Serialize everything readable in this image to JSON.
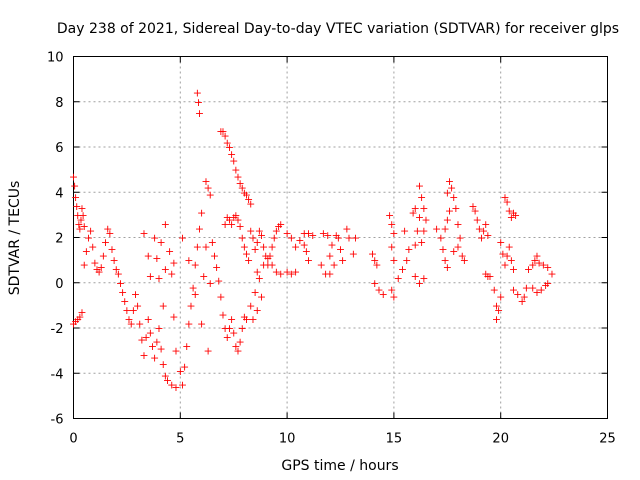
{
  "chart_data": {
    "type": "scatter",
    "title": "Day 238 of 2021, Sidereal Day-to-day VTEC variation (SDTVAR) for receiver glps",
    "xlabel": "GPS time / hours",
    "ylabel": "SDTVAR / TECUs",
    "xlim": [
      0,
      25
    ],
    "ylim": [
      -6,
      10
    ],
    "x_ticks": [
      "0",
      "5",
      "10",
      "15",
      "20",
      "25"
    ],
    "y_ticks": [
      "-6",
      "-4",
      "-2",
      "0",
      "2",
      "4",
      "6",
      "8",
      "10"
    ],
    "grid": true,
    "marker": "+",
    "marker_color": "#ff0000",
    "series": [
      {
        "name": "SDTVAR",
        "points": [
          [
            0.0,
            4.7
          ],
          [
            0.05,
            4.3
          ],
          [
            0.1,
            3.8
          ],
          [
            0.15,
            3.4
          ],
          [
            0.2,
            3.0
          ],
          [
            0.25,
            2.6
          ],
          [
            0.3,
            2.4
          ],
          [
            0.35,
            2.8
          ],
          [
            0.4,
            3.3
          ],
          [
            0.45,
            3.0
          ],
          [
            0.5,
            2.5
          ],
          [
            0.0,
            -1.8
          ],
          [
            0.1,
            -1.7
          ],
          [
            0.2,
            -1.6
          ],
          [
            0.3,
            -1.5
          ],
          [
            0.4,
            -1.3
          ],
          [
            0.5,
            0.8
          ],
          [
            0.6,
            1.4
          ],
          [
            0.7,
            2.0
          ],
          [
            0.8,
            2.3
          ],
          [
            0.9,
            1.6
          ],
          [
            1.0,
            0.9
          ],
          [
            1.1,
            0.6
          ],
          [
            1.2,
            0.5
          ],
          [
            1.3,
            0.7
          ],
          [
            1.4,
            1.2
          ],
          [
            1.5,
            1.8
          ],
          [
            1.6,
            2.4
          ],
          [
            1.7,
            2.2
          ],
          [
            1.8,
            1.5
          ],
          [
            1.9,
            1.0
          ],
          [
            2.0,
            0.6
          ],
          [
            2.1,
            0.4
          ],
          [
            2.2,
            0.0
          ],
          [
            2.3,
            -0.4
          ],
          [
            2.4,
            -0.8
          ],
          [
            2.5,
            -1.2
          ],
          [
            2.6,
            -1.6
          ],
          [
            2.7,
            -1.8
          ],
          [
            2.8,
            -1.2
          ],
          [
            2.9,
            -0.5
          ],
          [
            3.0,
            -1.0
          ],
          [
            3.1,
            -1.8
          ],
          [
            3.2,
            -2.5
          ],
          [
            3.3,
            -3.2
          ],
          [
            3.4,
            -2.4
          ],
          [
            3.5,
            -1.6
          ],
          [
            3.6,
            -2.2
          ],
          [
            3.7,
            -2.8
          ],
          [
            3.8,
            -3.3
          ],
          [
            3.9,
            -2.6
          ],
          [
            4.0,
            -2.0
          ],
          [
            4.1,
            -2.9
          ],
          [
            4.2,
            -3.6
          ],
          [
            4.3,
            -4.1
          ],
          [
            4.2,
            -1.0
          ],
          [
            4.3,
            0.6
          ],
          [
            3.3,
            2.2
          ],
          [
            3.5,
            1.2
          ],
          [
            3.6,
            0.3
          ],
          [
            3.8,
            2.0
          ],
          [
            3.9,
            1.1
          ],
          [
            4.0,
            0.2
          ],
          [
            4.1,
            1.8
          ],
          [
            4.3,
            2.6
          ],
          [
            4.5,
            1.4
          ],
          [
            4.6,
            0.4
          ],
          [
            4.7,
            -1.5
          ],
          [
            4.8,
            -3.0
          ],
          [
            4.7,
            0.9
          ],
          [
            4.4,
            -4.3
          ],
          [
            4.6,
            -4.5
          ],
          [
            4.8,
            -4.6
          ],
          [
            5.0,
            -3.9
          ],
          [
            5.1,
            -4.5
          ],
          [
            5.2,
            -3.7
          ],
          [
            5.3,
            -2.8
          ],
          [
            5.4,
            -1.8
          ],
          [
            5.5,
            -1.0
          ],
          [
            5.6,
            -0.2
          ],
          [
            5.7,
            0.8
          ],
          [
            5.8,
            1.6
          ],
          [
            5.9,
            2.4
          ],
          [
            6.0,
            3.1
          ],
          [
            5.1,
            2.0
          ],
          [
            5.4,
            1.0
          ],
          [
            5.7,
            -0.5
          ],
          [
            6.0,
            -1.8
          ],
          [
            6.3,
            -3.0
          ],
          [
            6.1,
            0.3
          ],
          [
            6.2,
            1.6
          ],
          [
            6.4,
            0.0
          ],
          [
            5.8,
            8.4
          ],
          [
            5.85,
            8.0
          ],
          [
            5.9,
            7.5
          ],
          [
            6.2,
            4.5
          ],
          [
            6.3,
            4.2
          ],
          [
            6.4,
            3.9
          ],
          [
            6.5,
            1.8
          ],
          [
            6.6,
            1.2
          ],
          [
            6.7,
            0.7
          ],
          [
            6.8,
            0.1
          ],
          [
            6.9,
            -0.6
          ],
          [
            7.0,
            -1.4
          ],
          [
            7.1,
            -2.0
          ],
          [
            7.2,
            -2.4
          ],
          [
            7.3,
            -2.0
          ],
          [
            7.4,
            -1.6
          ],
          [
            7.5,
            -2.2
          ],
          [
            7.6,
            -2.8
          ],
          [
            7.7,
            -3.0
          ],
          [
            7.8,
            -2.6
          ],
          [
            7.9,
            -2.0
          ],
          [
            8.0,
            -1.5
          ],
          [
            6.9,
            6.7
          ],
          [
            7.0,
            6.7
          ],
          [
            7.1,
            6.5
          ],
          [
            7.2,
            6.2
          ],
          [
            7.3,
            6.0
          ],
          [
            7.4,
            5.7
          ],
          [
            7.5,
            5.4
          ],
          [
            7.6,
            5.0
          ],
          [
            7.7,
            4.7
          ],
          [
            7.8,
            4.4
          ],
          [
            7.9,
            4.2
          ],
          [
            8.0,
            4.0
          ],
          [
            8.1,
            3.9
          ],
          [
            8.2,
            3.7
          ],
          [
            8.3,
            3.5
          ],
          [
            7.1,
            2.6
          ],
          [
            7.2,
            2.9
          ],
          [
            7.3,
            2.8
          ],
          [
            7.4,
            2.6
          ],
          [
            7.5,
            2.9
          ],
          [
            7.6,
            3.0
          ],
          [
            7.7,
            2.8
          ],
          [
            7.8,
            2.5
          ],
          [
            7.9,
            2.0
          ],
          [
            8.0,
            1.6
          ],
          [
            8.1,
            1.3
          ],
          [
            8.2,
            1.0
          ],
          [
            8.3,
            2.3
          ],
          [
            8.4,
            2.0
          ],
          [
            8.5,
            1.5
          ],
          [
            8.6,
            1.8
          ],
          [
            8.7,
            2.3
          ],
          [
            8.8,
            2.1
          ],
          [
            8.9,
            1.6
          ],
          [
            9.0,
            1.2
          ],
          [
            9.1,
            0.8
          ],
          [
            9.2,
            1.2
          ],
          [
            9.3,
            1.6
          ],
          [
            9.4,
            2.0
          ],
          [
            9.5,
            2.3
          ],
          [
            9.6,
            2.5
          ],
          [
            9.7,
            2.6
          ],
          [
            8.1,
            -1.6
          ],
          [
            8.3,
            -1.0
          ],
          [
            8.5,
            -0.4
          ],
          [
            8.7,
            0.2
          ],
          [
            8.9,
            0.8
          ],
          [
            9.1,
            1.1
          ],
          [
            9.3,
            0.8
          ],
          [
            9.5,
            0.5
          ],
          [
            9.7,
            0.4
          ],
          [
            8.8,
            -0.6
          ],
          [
            8.6,
            -1.2
          ],
          [
            8.4,
            -1.6
          ],
          [
            8.6,
            0.5
          ],
          [
            10.0,
            0.5
          ],
          [
            10.2,
            0.4
          ],
          [
            10.4,
            0.5
          ],
          [
            10.0,
            2.2
          ],
          [
            10.2,
            2.0
          ],
          [
            10.4,
            1.6
          ],
          [
            10.6,
            1.9
          ],
          [
            10.8,
            1.7
          ],
          [
            10.9,
            1.4
          ],
          [
            11.0,
            1.0
          ],
          [
            10.8,
            2.2
          ],
          [
            11.0,
            2.2
          ],
          [
            11.2,
            2.1
          ],
          [
            11.7,
            2.2
          ],
          [
            11.9,
            2.1
          ],
          [
            12.0,
            1.2
          ],
          [
            12.2,
            0.8
          ],
          [
            12.1,
            1.7
          ],
          [
            12.3,
            2.1
          ],
          [
            12.4,
            2.0
          ],
          [
            12.5,
            1.5
          ],
          [
            12.6,
            1.0
          ],
          [
            12.8,
            2.4
          ],
          [
            12.9,
            2.0
          ],
          [
            13.1,
            1.3
          ],
          [
            13.2,
            2.0
          ],
          [
            11.6,
            0.8
          ],
          [
            11.8,
            0.4
          ],
          [
            12.0,
            0.4
          ],
          [
            14.0,
            1.3
          ],
          [
            14.1,
            1.0
          ],
          [
            14.2,
            0.8
          ],
          [
            14.1,
            0.0
          ],
          [
            14.3,
            -0.3
          ],
          [
            14.5,
            -0.5
          ],
          [
            14.8,
            3.0
          ],
          [
            14.9,
            2.6
          ],
          [
            15.0,
            2.2
          ],
          [
            14.9,
            1.6
          ],
          [
            15.0,
            1.0
          ],
          [
            14.9,
            -0.3
          ],
          [
            15.0,
            -0.6
          ],
          [
            15.2,
            0.2
          ],
          [
            15.4,
            0.6
          ],
          [
            15.6,
            1.0
          ],
          [
            15.7,
            1.5
          ],
          [
            15.5,
            2.3
          ],
          [
            16.0,
            1.7
          ],
          [
            16.1,
            2.3
          ],
          [
            16.2,
            2.9
          ],
          [
            15.9,
            3.1
          ],
          [
            16.0,
            3.3
          ],
          [
            16.2,
            4.3
          ],
          [
            16.3,
            3.8
          ],
          [
            16.4,
            3.3
          ],
          [
            16.5,
            2.8
          ],
          [
            16.4,
            2.3
          ],
          [
            16.3,
            1.8
          ],
          [
            16.0,
            0.3
          ],
          [
            16.2,
            0.0
          ],
          [
            16.4,
            0.2
          ],
          [
            17.0,
            2.4
          ],
          [
            17.2,
            2.0
          ],
          [
            17.3,
            1.5
          ],
          [
            17.4,
            1.0
          ],
          [
            17.5,
            0.7
          ],
          [
            17.4,
            2.4
          ],
          [
            17.5,
            2.8
          ],
          [
            17.6,
            3.2
          ],
          [
            17.5,
            4.0
          ],
          [
            17.6,
            4.5
          ],
          [
            17.7,
            4.2
          ],
          [
            17.8,
            3.8
          ],
          [
            17.9,
            3.3
          ],
          [
            18.0,
            2.6
          ],
          [
            18.1,
            2.0
          ],
          [
            17.8,
            1.4
          ],
          [
            18.0,
            1.6
          ],
          [
            18.2,
            1.2
          ],
          [
            18.3,
            1.0
          ],
          [
            18.7,
            3.4
          ],
          [
            18.8,
            3.2
          ],
          [
            18.9,
            2.8
          ],
          [
            19.0,
            2.4
          ],
          [
            19.1,
            2.0
          ],
          [
            19.2,
            2.3
          ],
          [
            19.3,
            2.6
          ],
          [
            19.4,
            2.1
          ],
          [
            19.3,
            0.4
          ],
          [
            19.4,
            0.3
          ],
          [
            19.5,
            0.3
          ],
          [
            19.7,
            -0.3
          ],
          [
            19.8,
            -1.0
          ],
          [
            19.8,
            -1.6
          ],
          [
            19.9,
            -1.2
          ],
          [
            20.0,
            -0.6
          ],
          [
            20.0,
            1.8
          ],
          [
            20.1,
            1.3
          ],
          [
            20.2,
            0.8
          ],
          [
            20.3,
            1.2
          ],
          [
            20.4,
            1.6
          ],
          [
            20.5,
            1.0
          ],
          [
            20.6,
            0.6
          ],
          [
            20.2,
            3.8
          ],
          [
            20.3,
            3.6
          ],
          [
            20.4,
            3.2
          ],
          [
            20.5,
            2.9
          ],
          [
            20.6,
            3.1
          ],
          [
            20.7,
            3.0
          ],
          [
            20.6,
            -0.3
          ],
          [
            20.8,
            -0.5
          ],
          [
            21.0,
            -0.8
          ],
          [
            21.1,
            -0.6
          ],
          [
            21.2,
            -0.2
          ],
          [
            21.3,
            0.6
          ],
          [
            21.5,
            0.8
          ],
          [
            21.6,
            1.0
          ],
          [
            21.7,
            1.2
          ],
          [
            21.8,
            0.9
          ],
          [
            21.5,
            -0.2
          ],
          [
            21.7,
            -0.4
          ],
          [
            21.9,
            -0.3
          ],
          [
            22.1,
            -0.1
          ],
          [
            22.2,
            0.0
          ],
          [
            22.0,
            0.8
          ],
          [
            22.2,
            0.7
          ],
          [
            22.4,
            0.4
          ]
        ]
      }
    ]
  }
}
